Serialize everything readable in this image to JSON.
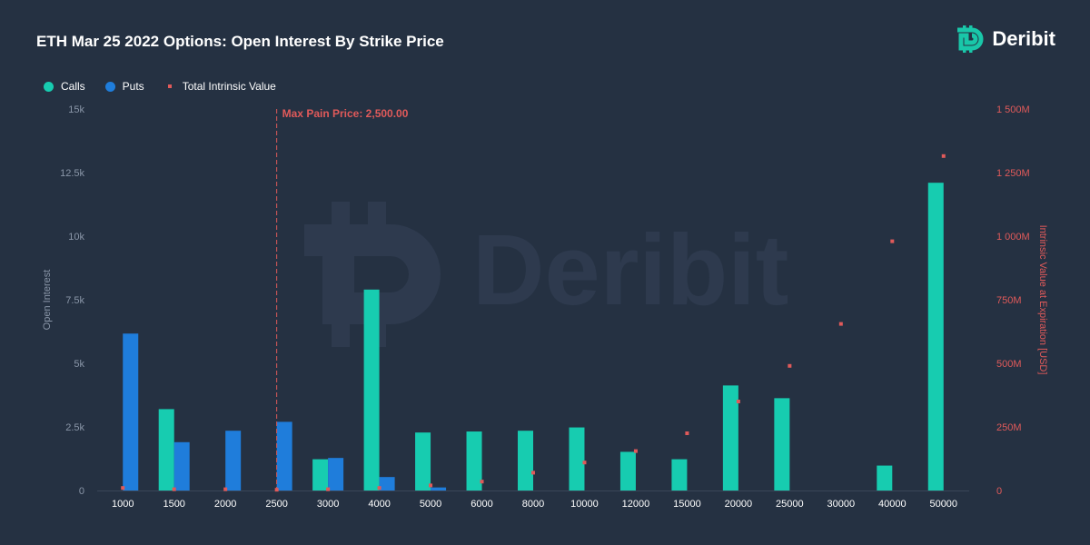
{
  "title": "ETH Mar 25 2022 Options: Open Interest By Strike Price",
  "brand": {
    "name": "Deribit",
    "icon": "deribit-logo-icon",
    "color": "#19c7a9"
  },
  "legend": [
    {
      "label": "Calls",
      "color": "#17ccb0",
      "shape": "circle"
    },
    {
      "label": "Puts",
      "color": "#1f7ddb",
      "shape": "circle"
    },
    {
      "label": "Total Intrinsic Value",
      "color": "#e05a5a",
      "shape": "square"
    }
  ],
  "chart_data": {
    "type": "bar",
    "categories": [
      "1000",
      "1500",
      "2000",
      "2500",
      "3000",
      "4000",
      "5000",
      "6000",
      "8000",
      "10000",
      "12000",
      "15000",
      "20000",
      "25000",
      "30000",
      "40000",
      "50000"
    ],
    "series": [
      {
        "name": "Calls",
        "type": "bar",
        "axis": "left",
        "color": "#17ccb0",
        "values": [
          0,
          3200,
          0,
          0,
          1230,
          7900,
          2280,
          2320,
          2350,
          2480,
          1520,
          1230,
          4130,
          3630,
          0,
          980,
          12100
        ]
      },
      {
        "name": "Puts",
        "type": "bar",
        "axis": "left",
        "color": "#1f7ddb",
        "values": [
          6170,
          1900,
          2350,
          2700,
          1280,
          530,
          120,
          0,
          0,
          0,
          0,
          0,
          0,
          0,
          0,
          0,
          0
        ]
      },
      {
        "name": "Total Intrinsic Value",
        "type": "scatter",
        "axis": "right",
        "color": "#e05a5a",
        "values": [
          10000000,
          5000000,
          5000000,
          3000000,
          5000000,
          10000000,
          20000000,
          35000000,
          70000000,
          110000000,
          155000000,
          225000000,
          350000000,
          490000000,
          655000000,
          980000000,
          1315000000
        ]
      }
    ],
    "ylabel": "Open Interest",
    "ylabel_right": "Intrinsic Value at Expiration [USD]",
    "ylim": [
      0,
      15000
    ],
    "ylim_right": [
      0,
      1500000000
    ],
    "yticks": [
      "0",
      "2.5k",
      "5k",
      "7.5k",
      "10k",
      "12.5k",
      "15k"
    ],
    "yticks_right": [
      "0",
      "250M",
      "500M",
      "750M",
      "1 000M",
      "1 250M",
      "1 500M"
    ],
    "annotation": {
      "label": "Max Pain Price: 2,500.00",
      "category": "2500",
      "color": "#e05a5a"
    },
    "watermark": "Deribit",
    "grid": false,
    "legend_position": "top-left"
  }
}
